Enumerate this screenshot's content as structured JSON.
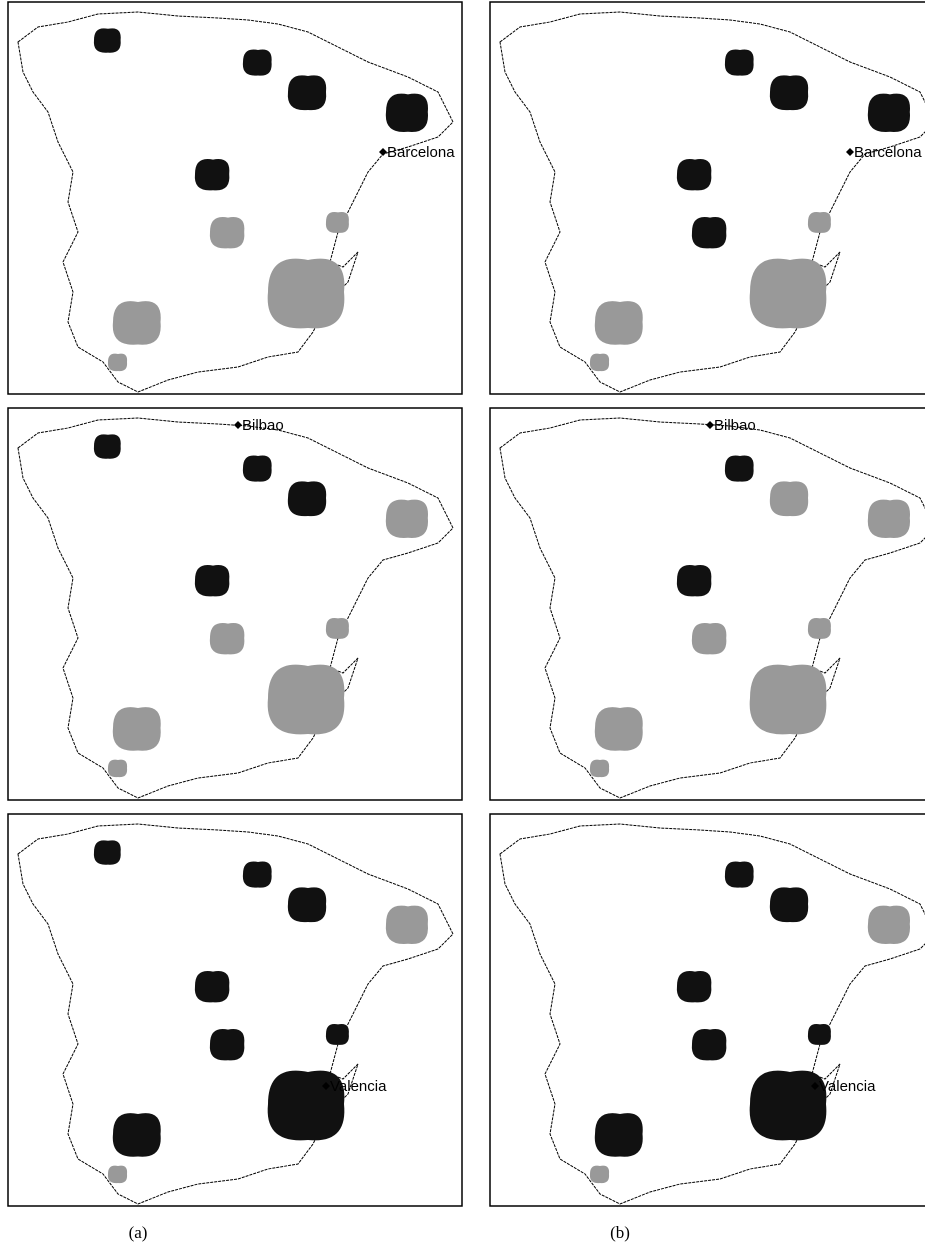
{
  "panels": [
    {
      "city": "Barcelona"
    },
    {
      "city": "Barcelona"
    },
    {
      "city": "Bilbao"
    },
    {
      "city": "Bilbao"
    },
    {
      "city": "Valencia"
    },
    {
      "city": "Valencia"
    }
  ],
  "captions": [
    "(a)",
    "(b)"
  ]
}
